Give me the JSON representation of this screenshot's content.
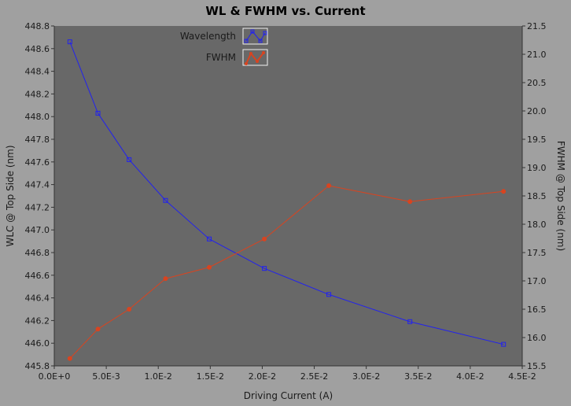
{
  "chart_data": {
    "type": "line",
    "title": "WL & FWHM vs. Current",
    "xlabel": "Driving Current (A)",
    "ylabel_left": "WLC @ Top Side (nm)",
    "ylabel_right": "FWHM @ Top Side (nm)",
    "xlim": [
      0,
      0.045
    ],
    "ylim_left": [
      445.8,
      448.8
    ],
    "ylim_right": [
      15.5,
      21.5
    ],
    "x_ticks": [
      {
        "value": 0,
        "label": "0.0E+0"
      },
      {
        "value": 0.005,
        "label": "5.0E-3"
      },
      {
        "value": 0.01,
        "label": "1.0E-2"
      },
      {
        "value": 0.015,
        "label": "1.5E-2"
      },
      {
        "value": 0.02,
        "label": "2.0E-2"
      },
      {
        "value": 0.025,
        "label": "2.5E-2"
      },
      {
        "value": 0.03,
        "label": "3.0E-2"
      },
      {
        "value": 0.035,
        "label": "3.5E-2"
      },
      {
        "value": 0.04,
        "label": "4.0E-2"
      },
      {
        "value": 0.045,
        "label": "4.5E-2"
      }
    ],
    "y_left_ticks": [
      {
        "value": 445.8,
        "label": "445.8"
      },
      {
        "value": 446.0,
        "label": "446.0"
      },
      {
        "value": 446.2,
        "label": "446.2"
      },
      {
        "value": 446.4,
        "label": "446.4"
      },
      {
        "value": 446.6,
        "label": "446.6"
      },
      {
        "value": 446.8,
        "label": "446.8"
      },
      {
        "value": 447.0,
        "label": "447.0"
      },
      {
        "value": 447.2,
        "label": "447.2"
      },
      {
        "value": 447.4,
        "label": "447.4"
      },
      {
        "value": 447.6,
        "label": "447.6"
      },
      {
        "value": 447.8,
        "label": "447.8"
      },
      {
        "value": 448.0,
        "label": "448.0"
      },
      {
        "value": 448.2,
        "label": "448.2"
      },
      {
        "value": 448.4,
        "label": "448.4"
      },
      {
        "value": 448.6,
        "label": "448.6"
      },
      {
        "value": 448.8,
        "label": "448.8"
      }
    ],
    "y_right_ticks": [
      {
        "value": 15.5,
        "label": "15.5"
      },
      {
        "value": 16.0,
        "label": "16.0"
      },
      {
        "value": 16.5,
        "label": "16.5"
      },
      {
        "value": 17.0,
        "label": "17.0"
      },
      {
        "value": 17.5,
        "label": "17.5"
      },
      {
        "value": 18.0,
        "label": "18.0"
      },
      {
        "value": 18.5,
        "label": "18.5"
      },
      {
        "value": 19.0,
        "label": "19.0"
      },
      {
        "value": 19.5,
        "label": "19.5"
      },
      {
        "value": 20.0,
        "label": "20.0"
      },
      {
        "value": 20.5,
        "label": "20.5"
      },
      {
        "value": 21.0,
        "label": "21.0"
      },
      {
        "value": 21.5,
        "label": "21.5"
      }
    ],
    "series": [
      {
        "name": "Wavelength",
        "axis": "left",
        "color": "#2222ee",
        "marker": "square",
        "x": [
          0.0015,
          0.0042,
          0.0072,
          0.0107,
          0.0149,
          0.0202,
          0.0264,
          0.0342,
          0.0432
        ],
        "y": [
          448.66,
          448.03,
          447.62,
          447.26,
          446.92,
          446.66,
          446.43,
          446.19,
          445.99
        ]
      },
      {
        "name": "FWHM",
        "axis": "right",
        "color": "#d84420",
        "marker": "circle",
        "x": [
          0.0015,
          0.0042,
          0.0072,
          0.0107,
          0.0149,
          0.0202,
          0.0264,
          0.0342,
          0.0432
        ],
        "y": [
          15.63,
          16.15,
          16.5,
          17.04,
          17.24,
          17.74,
          18.68,
          18.4,
          18.58
        ]
      }
    ],
    "legend_placement": "top-center",
    "grid": false
  },
  "colors": {
    "background": "#a0a0a0",
    "plot_area": "#686868",
    "axis_line": "#333333"
  }
}
